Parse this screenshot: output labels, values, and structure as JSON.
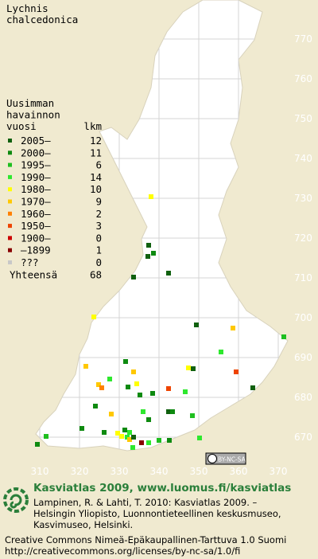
{
  "title_lines": [
    "Lychnis",
    "chalcedonica"
  ],
  "legend": {
    "heading_lines": [
      "Uusimman",
      "havainnon",
      "vuosi"
    ],
    "count_header": "lkm",
    "rows": [
      {
        "label": "2005–",
        "count": 12,
        "color": "#10600f"
      },
      {
        "label": "2000–",
        "count": 11,
        "color": "#0e8a10"
      },
      {
        "label": "1995–",
        "count": 6,
        "color": "#1fbf1f"
      },
      {
        "label": "1990–",
        "count": 14,
        "color": "#2ee82e"
      },
      {
        "label": "1980–",
        "count": 10,
        "color": "#ffff00"
      },
      {
        "label": "1970–",
        "count": 9,
        "color": "#ffc800"
      },
      {
        "label": "1960–",
        "count": 2,
        "color": "#ff8000"
      },
      {
        "label": "1950–",
        "count": 3,
        "color": "#ee4400"
      },
      {
        "label": "1900–",
        "count": 0,
        "color": "#cc0000"
      },
      {
        "label": "–1899",
        "count": 1,
        "color": "#880000"
      },
      {
        "label": "???",
        "count": 0,
        "color": "#c8c8c8"
      }
    ],
    "total": {
      "label": "Yhteensä",
      "count": 68
    }
  },
  "grid": {
    "xticks": [
      310,
      320,
      330,
      340,
      350,
      360,
      370
    ],
    "yticks": [
      670,
      680,
      690,
      700,
      710,
      720,
      730,
      740,
      750,
      760,
      770
    ]
  },
  "points": [
    {
      "x": 338,
      "y": 730.4,
      "k": 4
    },
    {
      "x": 337.4,
      "y": 718.2,
      "k": 0
    },
    {
      "x": 338.6,
      "y": 716.2,
      "k": 1
    },
    {
      "x": 337.2,
      "y": 715.4,
      "k": 0
    },
    {
      "x": 333.6,
      "y": 710.2,
      "k": 0
    },
    {
      "x": 342.4,
      "y": 711.2,
      "k": 0
    },
    {
      "x": 323.6,
      "y": 700.2,
      "k": 4
    },
    {
      "x": 349.4,
      "y": 698.2,
      "k": 0
    },
    {
      "x": 358.6,
      "y": 697.4,
      "k": 5
    },
    {
      "x": 371.4,
      "y": 695.2,
      "k": 2
    },
    {
      "x": 355.6,
      "y": 691.4,
      "k": 3
    },
    {
      "x": 331.6,
      "y": 689,
      "k": 1
    },
    {
      "x": 321.6,
      "y": 687.8,
      "k": 5
    },
    {
      "x": 347.4,
      "y": 687.4,
      "k": 4
    },
    {
      "x": 348.6,
      "y": 687.2,
      "k": 0
    },
    {
      "x": 333.6,
      "y": 686.4,
      "k": 5
    },
    {
      "x": 359.4,
      "y": 686.4,
      "k": 7
    },
    {
      "x": 327.6,
      "y": 684.6,
      "k": 3
    },
    {
      "x": 324.8,
      "y": 683.2,
      "k": 5
    },
    {
      "x": 325.6,
      "y": 682.4,
      "k": 6
    },
    {
      "x": 332.2,
      "y": 682.6,
      "k": 1
    },
    {
      "x": 334.4,
      "y": 683.4,
      "k": 4
    },
    {
      "x": 342.4,
      "y": 682.2,
      "k": 7
    },
    {
      "x": 346.6,
      "y": 681.4,
      "k": 3
    },
    {
      "x": 363.6,
      "y": 682.4,
      "k": 0
    },
    {
      "x": 335.2,
      "y": 680.6,
      "k": 1
    },
    {
      "x": 338.4,
      "y": 681,
      "k": 1
    },
    {
      "x": 324,
      "y": 677.8,
      "k": 1
    },
    {
      "x": 328,
      "y": 675.8,
      "k": 5
    },
    {
      "x": 336,
      "y": 676.4,
      "k": 3
    },
    {
      "x": 342.4,
      "y": 676.4,
      "k": 0
    },
    {
      "x": 343.4,
      "y": 676.4,
      "k": 1
    },
    {
      "x": 348.4,
      "y": 675.4,
      "k": 2
    },
    {
      "x": 337.4,
      "y": 674.4,
      "k": 1
    },
    {
      "x": 320.6,
      "y": 672.2,
      "k": 1
    },
    {
      "x": 331.4,
      "y": 671.8,
      "k": 1
    },
    {
      "x": 332.6,
      "y": 671.2,
      "k": 3
    },
    {
      "x": 326.2,
      "y": 671.2,
      "k": 1
    },
    {
      "x": 330.6,
      "y": 670.2,
      "k": 4
    },
    {
      "x": 332,
      "y": 670,
      "k": 3
    },
    {
      "x": 332.6,
      "y": 669.4,
      "k": 5
    },
    {
      "x": 333.6,
      "y": 670,
      "k": 0
    },
    {
      "x": 335.6,
      "y": 668.6,
      "k": 9
    },
    {
      "x": 337.4,
      "y": 668.6,
      "k": 3
    },
    {
      "x": 333.4,
      "y": 667.4,
      "k": 3
    },
    {
      "x": 340,
      "y": 669.2,
      "k": 2
    },
    {
      "x": 342.6,
      "y": 669.2,
      "k": 1
    },
    {
      "x": 311.6,
      "y": 670.2,
      "k": 2
    },
    {
      "x": 309.4,
      "y": 668.2,
      "k": 1
    },
    {
      "x": 329.6,
      "y": 671,
      "k": 4
    },
    {
      "x": 350.2,
      "y": 669.8,
      "k": 3
    }
  ],
  "badge": "BY-NC-SA",
  "footer": {
    "headline": "Kasviatlas 2009, www.luomus.fi/kasviatlas",
    "citation_lines": [
      "Lampinen, R. & Lahti, T. 2010: Kasviatlas 2009. –",
      "Helsingin Yliopisto, Luonnontieteellinen keskusmuseo,",
      "Kasvimuseo, Helsinki."
    ],
    "license_lines": [
      "Creative Commons Nimeä-Epäkaupallinen-Tarttuva 1.0 Suomi",
      "http://creativecommons.org/licenses/by-nc-sa/1.0/fi"
    ]
  }
}
